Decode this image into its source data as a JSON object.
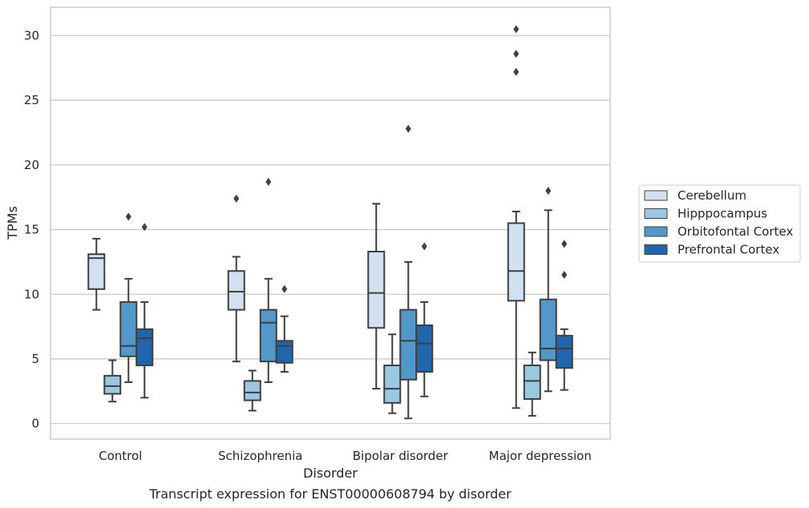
{
  "chart_data": {
    "type": "box",
    "xlabel": "Disorder",
    "ylabel": "TPMs",
    "caption": "Transcript expression for ENST00000608794 by disorder",
    "ylim": [
      -1.2,
      32.2
    ],
    "yticks": [
      0,
      5,
      10,
      15,
      20,
      25,
      30
    ],
    "grid": true,
    "legend_position": "right",
    "categories": [
      "Control",
      "Schizophrenia",
      "Bipolar disorder",
      "Major depression"
    ],
    "series": [
      {
        "name": "Cerebellum",
        "color": "#d1e1f1",
        "boxes": [
          {
            "whisker_low": 8.8,
            "q1": 10.4,
            "median": 12.8,
            "q3": 13.1,
            "whisker_high": 14.3,
            "outliers": []
          },
          {
            "whisker_low": 4.8,
            "q1": 8.8,
            "median": 10.2,
            "q3": 11.8,
            "whisker_high": 12.9,
            "outliers": [
              17.4
            ]
          },
          {
            "whisker_low": 2.7,
            "q1": 7.4,
            "median": 10.1,
            "q3": 13.3,
            "whisker_high": 17.0,
            "outliers": []
          },
          {
            "whisker_low": 1.2,
            "q1": 9.5,
            "median": 11.8,
            "q3": 15.5,
            "whisker_high": 16.4,
            "outliers": [
              27.2,
              28.6,
              30.5
            ]
          }
        ]
      },
      {
        "name": "Hipppocampus",
        "color": "#9ac8e0",
        "boxes": [
          {
            "whisker_low": 1.7,
            "q1": 2.3,
            "median": 2.9,
            "q3": 3.7,
            "whisker_high": 4.9,
            "outliers": []
          },
          {
            "whisker_low": 1.0,
            "q1": 1.8,
            "median": 2.4,
            "q3": 3.3,
            "whisker_high": 4.1,
            "outliers": []
          },
          {
            "whisker_low": 0.8,
            "q1": 1.6,
            "median": 2.7,
            "q3": 4.5,
            "whisker_high": 6.9,
            "outliers": []
          },
          {
            "whisker_low": 0.6,
            "q1": 1.9,
            "median": 3.3,
            "q3": 4.5,
            "whisker_high": 5.5,
            "outliers": []
          }
        ]
      },
      {
        "name": "Orbitofontal Cortex",
        "color": "#5299c9",
        "boxes": [
          {
            "whisker_low": 3.2,
            "q1": 5.2,
            "median": 6.0,
            "q3": 9.4,
            "whisker_high": 11.2,
            "outliers": [
              16.0
            ]
          },
          {
            "whisker_low": 3.2,
            "q1": 4.8,
            "median": 7.8,
            "q3": 8.8,
            "whisker_high": 11.2,
            "outliers": [
              18.7
            ]
          },
          {
            "whisker_low": 0.4,
            "q1": 3.4,
            "median": 6.4,
            "q3": 8.8,
            "whisker_high": 12.5,
            "outliers": [
              22.8
            ]
          },
          {
            "whisker_low": 2.5,
            "q1": 4.9,
            "median": 5.8,
            "q3": 9.6,
            "whisker_high": 16.5,
            "outliers": [
              18.0
            ]
          }
        ]
      },
      {
        "name": "Prefrontal Cortex",
        "color": "#2066ac",
        "boxes": [
          {
            "whisker_low": 2.0,
            "q1": 4.5,
            "median": 6.6,
            "q3": 7.3,
            "whisker_high": 9.4,
            "outliers": [
              15.2
            ]
          },
          {
            "whisker_low": 4.0,
            "q1": 4.7,
            "median": 6.0,
            "q3": 6.4,
            "whisker_high": 8.3,
            "outliers": [
              10.4
            ]
          },
          {
            "whisker_low": 2.1,
            "q1": 4.0,
            "median": 6.2,
            "q3": 7.6,
            "whisker_high": 9.4,
            "outliers": [
              13.7
            ]
          },
          {
            "whisker_low": 2.6,
            "q1": 4.3,
            "median": 5.8,
            "q3": 6.8,
            "whisker_high": 7.3,
            "outliers": [
              11.5,
              13.9
            ]
          }
        ]
      }
    ]
  }
}
